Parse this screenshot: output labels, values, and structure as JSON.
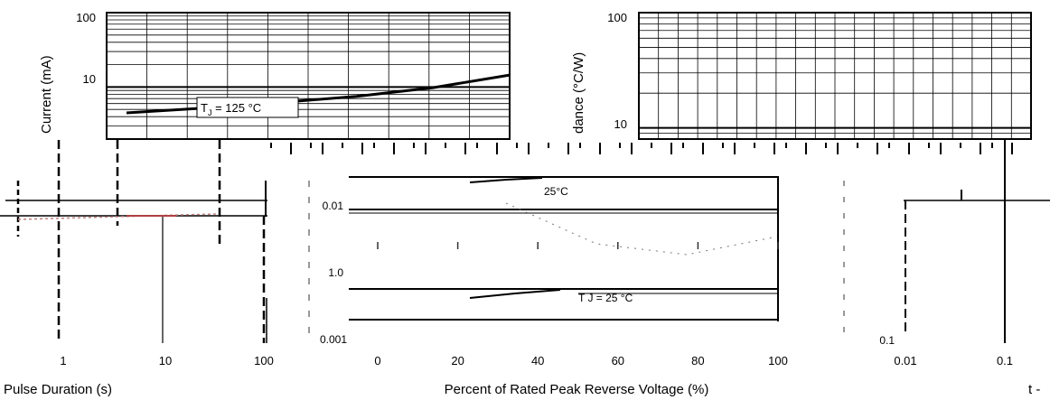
{
  "chart_data": [
    {
      "type": "line",
      "xlabel": "",
      "ylabel": "Current (mA)",
      "yscale": "log",
      "ylim": [
        2,
        100
      ],
      "y_ticks": [
        "100",
        "10"
      ],
      "annotation": "T J = 125 °C",
      "annotation_main": "T",
      "annotation_sub": "J",
      "annotation_rest": " = 125 °C",
      "series": [
        {
          "x": [
            0,
            20,
            40,
            60,
            80,
            100
          ],
          "y": [
            4.5,
            5.2,
            6.2,
            7.5,
            9.8,
            14.5
          ]
        }
      ]
    },
    {
      "type": "line",
      "xlabel": "Pulse Duration (s)",
      "ylabel": "",
      "xscale": "log",
      "x_ticks": [
        "1",
        "10",
        "100"
      ]
    },
    {
      "type": "line",
      "xlabel": "Percent of Rated Peak Reverse Voltage (%)",
      "ylabel": "",
      "xlim": [
        0,
        100
      ],
      "x_ticks": [
        "0",
        "20",
        "40",
        "60",
        "80",
        "100"
      ],
      "y_ticks": [
        "0.01",
        "1.0",
        "0.001"
      ],
      "annotation_upper": "25°C",
      "annotation_lower": "T J = 25 °C"
    },
    {
      "type": "line",
      "xlabel": "",
      "ylabel": "dance (°C/W)",
      "yscale": "log",
      "y_ticks": [
        "100",
        "10"
      ]
    },
    {
      "type": "line",
      "xlabel": "t -",
      "ylabel": "",
      "xscale": "log",
      "x_ticks": [
        "0.01",
        "0.1"
      ],
      "y_ticks": [
        "0.1"
      ]
    }
  ]
}
